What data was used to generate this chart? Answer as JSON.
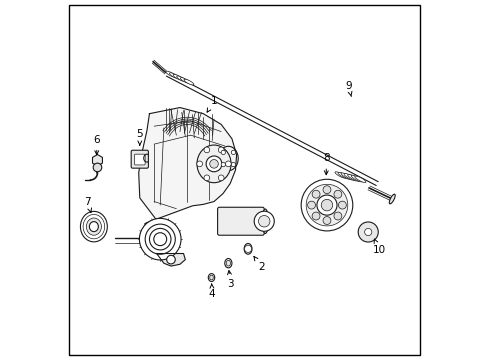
{
  "background_color": "#ffffff",
  "line_color": "#1a1a1a",
  "figsize": [
    4.89,
    3.6
  ],
  "dpi": 100,
  "label_arrows": {
    "1": [
      0.415,
      0.685,
      0.385,
      0.635
    ],
    "2": [
      0.545,
      0.245,
      0.53,
      0.295
    ],
    "3": [
      0.455,
      0.195,
      0.445,
      0.24
    ],
    "4": [
      0.415,
      0.17,
      0.405,
      0.21
    ],
    "5": [
      0.215,
      0.615,
      0.215,
      0.57
    ],
    "6": [
      0.09,
      0.6,
      0.09,
      0.555
    ],
    "7": [
      0.065,
      0.43,
      0.075,
      0.39
    ],
    "8": [
      0.73,
      0.545,
      0.73,
      0.49
    ],
    "9": [
      0.79,
      0.755,
      0.79,
      0.715
    ],
    "10": [
      0.87,
      0.31,
      0.855,
      0.34
    ]
  }
}
